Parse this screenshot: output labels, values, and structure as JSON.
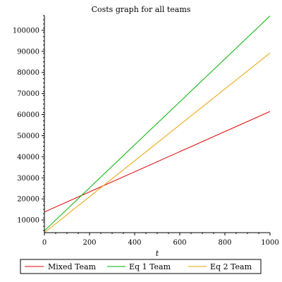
{
  "chart_data": {
    "type": "line",
    "title": "Costs graph for all teams",
    "xlabel": "t",
    "ylabel": "",
    "xlim": [
      0,
      1000
    ],
    "ylim": [
      4000,
      107000
    ],
    "x_ticks": [
      0,
      200,
      400,
      600,
      800,
      1000
    ],
    "y_ticks": [
      10000,
      20000,
      30000,
      40000,
      50000,
      60000,
      70000,
      80000,
      90000,
      100000
    ],
    "grid": false,
    "legend_position": "bottom",
    "series": [
      {
        "name": "Mixed Team",
        "color": "#e00000",
        "x": [
          0,
          1000
        ],
        "y": [
          13800,
          61500
        ]
      },
      {
        "name": "Eq 1 Team",
        "color": "#00b000",
        "x": [
          0,
          1000
        ],
        "y": [
          4900,
          106800
        ]
      },
      {
        "name": "Eq 2 Team",
        "color": "#e8a000",
        "x": [
          0,
          1000
        ],
        "y": [
          4000,
          89200
        ]
      }
    ]
  }
}
